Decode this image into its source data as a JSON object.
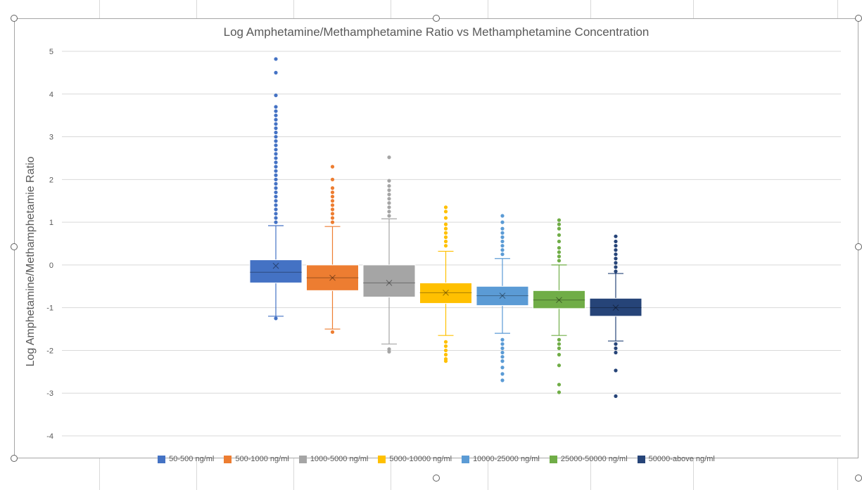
{
  "chart_data": {
    "type": "boxplot",
    "title": "Log Amphetamine/Methamphetamine Ratio vs Methamphetamine Concentration",
    "ylabel": "Log  Amphetamine/Methamphetamie  Ratio",
    "xlabel": "",
    "ylim": [
      -4,
      5
    ],
    "yticks": [
      5,
      4,
      3,
      2,
      1,
      0,
      -1,
      -2,
      -3,
      -4
    ],
    "grid": true,
    "legend_position": "bottom",
    "series": [
      {
        "name": "50-500 ng/ml",
        "color": "#4472c4",
        "q1": -0.42,
        "median": -0.17,
        "q3": 0.12,
        "mean": -0.02,
        "whisker_low": -1.2,
        "whisker_high": 0.92,
        "outliers": [
          4.82,
          4.5,
          3.97,
          3.7,
          3.6,
          3.5,
          3.4,
          3.3,
          3.2,
          3.1,
          3.0,
          2.9,
          2.8,
          2.7,
          2.6,
          2.5,
          2.4,
          2.3,
          2.2,
          2.1,
          2.0,
          1.9,
          1.8,
          1.7,
          1.6,
          1.5,
          1.4,
          1.3,
          1.2,
          1.1,
          1.0,
          -1.25
        ]
      },
      {
        "name": "500-1000 ng/ml",
        "color": "#ed7d31",
        "q1": -0.6,
        "median": -0.3,
        "q3": 0.0,
        "mean": -0.3,
        "whisker_low": -1.5,
        "whisker_high": 0.9,
        "outliers": [
          2.3,
          2.0,
          1.8,
          1.7,
          1.6,
          1.5,
          1.4,
          1.3,
          1.2,
          1.1,
          1.0,
          -1.57
        ]
      },
      {
        "name": "1000-5000 ng/ml",
        "color": "#a5a5a5",
        "q1": -0.75,
        "median": -0.42,
        "q3": 0.0,
        "mean": -0.42,
        "whisker_low": -1.85,
        "whisker_high": 1.08,
        "outliers": [
          2.52,
          1.97,
          1.85,
          1.75,
          1.65,
          1.55,
          1.45,
          1.35,
          1.25,
          1.15,
          -1.97,
          -2.03
        ]
      },
      {
        "name": "5000-10000 ng/ml",
        "color": "#ffc000",
        "q1": -0.9,
        "median": -0.65,
        "q3": -0.42,
        "mean": -0.65,
        "whisker_low": -1.65,
        "whisker_high": 0.32,
        "outliers": [
          1.35,
          1.25,
          1.1,
          0.95,
          0.85,
          0.75,
          0.65,
          0.55,
          0.45,
          -1.8,
          -1.9,
          -2.0,
          -2.1,
          -2.2,
          -2.25
        ]
      },
      {
        "name": "10000-25000 ng/ml",
        "color": "#5b9bd5",
        "q1": -0.95,
        "median": -0.72,
        "q3": -0.5,
        "mean": -0.72,
        "whisker_low": -1.6,
        "whisker_high": 0.15,
        "outliers": [
          1.15,
          1.0,
          0.85,
          0.75,
          0.65,
          0.55,
          0.45,
          0.35,
          0.25,
          -1.75,
          -1.85,
          -1.95,
          -2.05,
          -2.15,
          -2.25,
          -2.4,
          -2.55,
          -2.7
        ]
      },
      {
        "name": "25000-50000 ng/ml",
        "color": "#70ad47",
        "q1": -1.02,
        "median": -0.82,
        "q3": -0.6,
        "mean": -0.82,
        "whisker_low": -1.65,
        "whisker_high": 0.0,
        "outliers": [
          1.05,
          0.95,
          0.85,
          0.7,
          0.55,
          0.4,
          0.3,
          0.2,
          0.1,
          -1.75,
          -1.85,
          -1.95,
          -2.1,
          -2.35,
          -2.8,
          -2.98
        ]
      },
      {
        "name": "50000-above ng/ml",
        "color": "#264478",
        "q1": -1.2,
        "median": -1.0,
        "q3": -0.78,
        "mean": -1.0,
        "whisker_low": -1.78,
        "whisker_high": -0.2,
        "outliers": [
          0.67,
          0.55,
          0.45,
          0.35,
          0.25,
          0.15,
          0.05,
          -0.05,
          -0.15,
          -1.85,
          -1.95,
          -2.05,
          -2.47,
          -3.07
        ]
      }
    ]
  }
}
